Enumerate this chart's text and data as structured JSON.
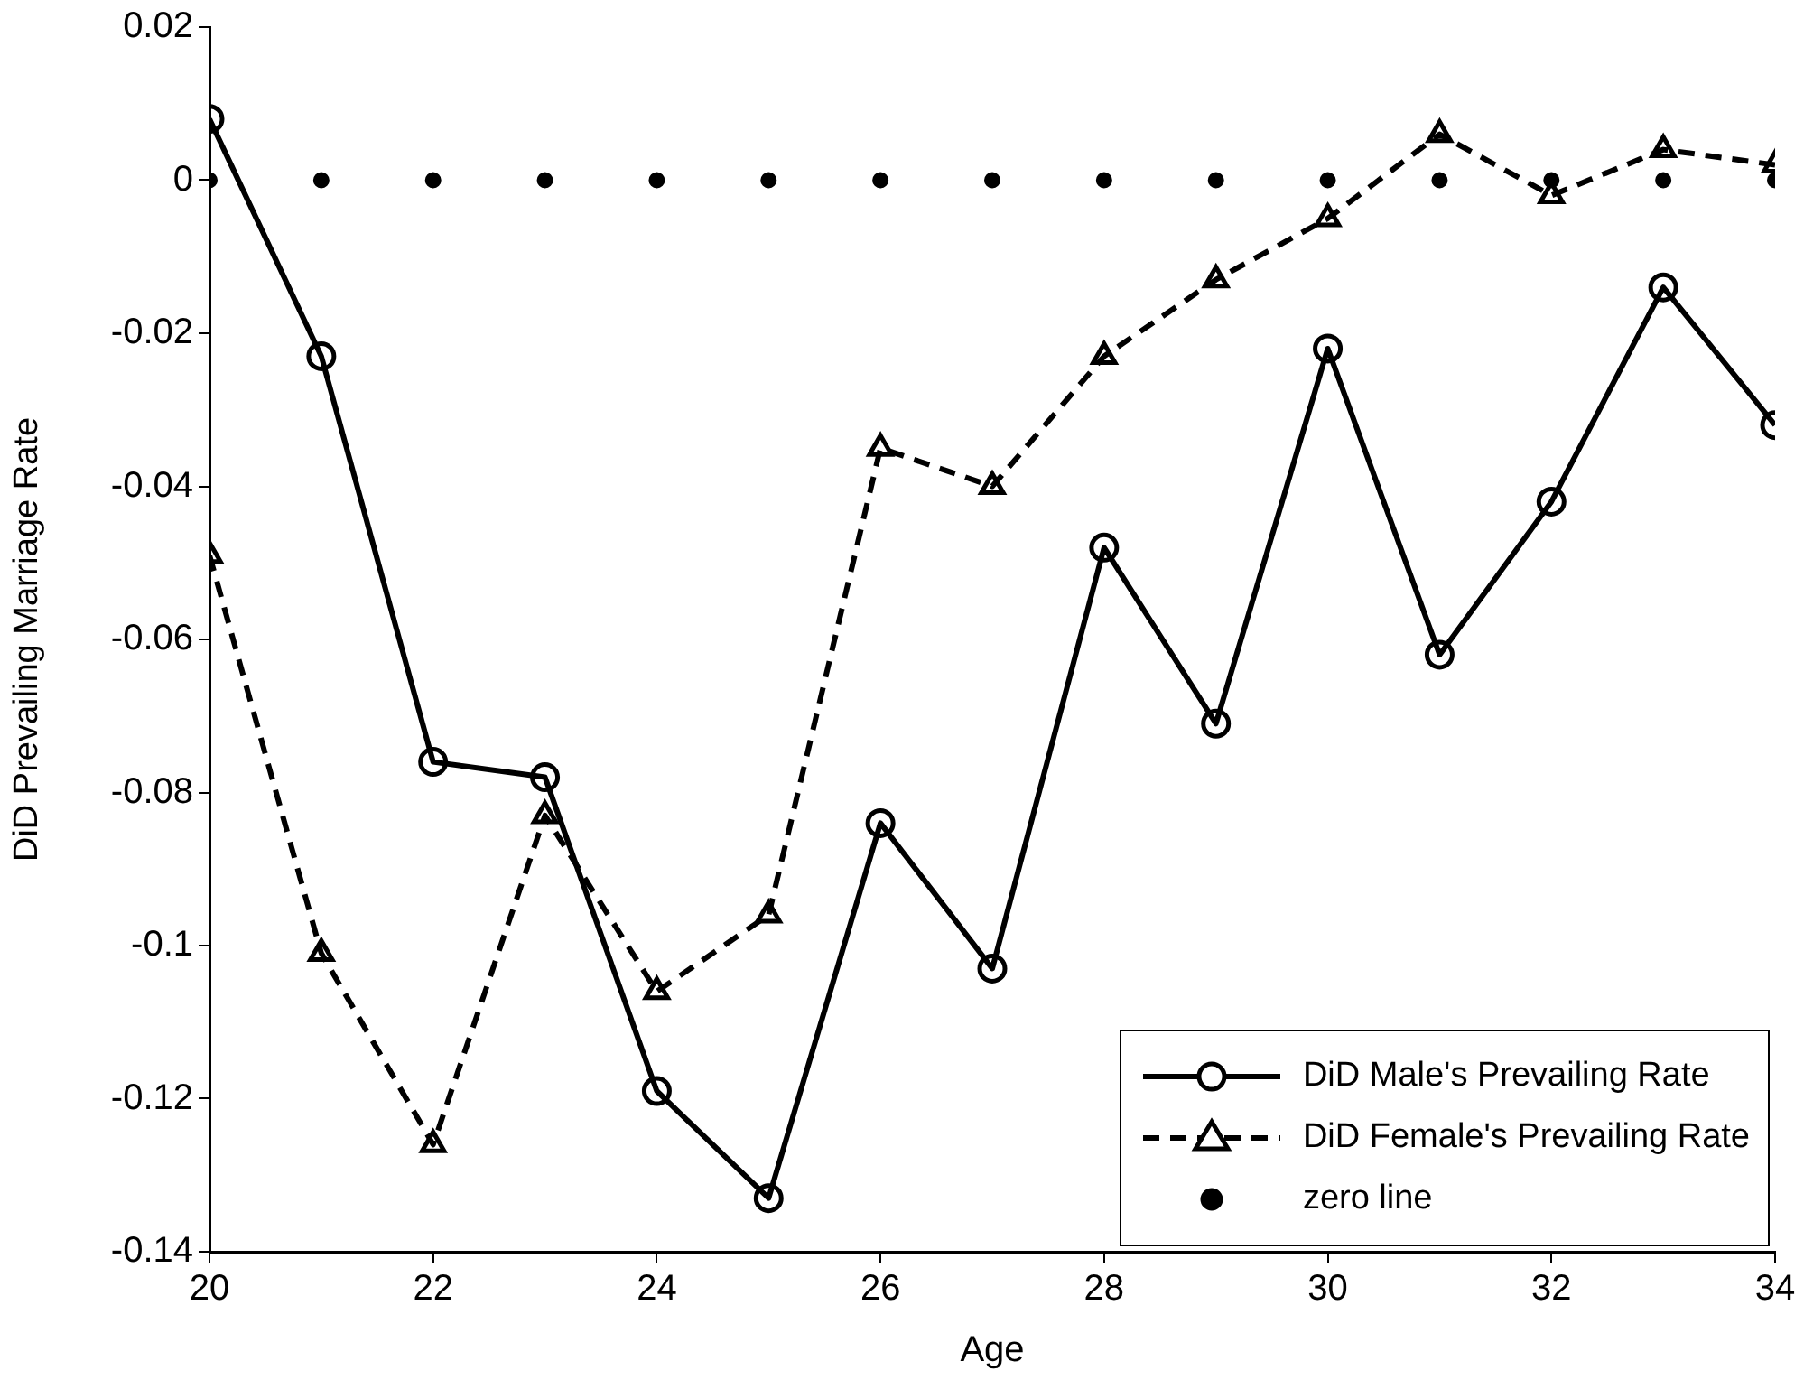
{
  "chart_data": {
    "type": "line",
    "xlabel": "Age",
    "ylabel": "DiD Prevailing Marriage Rate",
    "x": [
      20,
      21,
      22,
      23,
      24,
      25,
      26,
      27,
      28,
      29,
      30,
      31,
      32,
      33,
      34
    ],
    "xlim": [
      20,
      34
    ],
    "xticks": [
      20,
      22,
      24,
      26,
      28,
      30,
      32,
      34
    ],
    "ylim": [
      -0.14,
      0.02
    ],
    "yticks": [
      {
        "value": 0.02,
        "label": "0.02"
      },
      {
        "value": 0,
        "label": "0"
      },
      {
        "value": -0.02,
        "label": "-0.02"
      },
      {
        "value": -0.04,
        "label": "-0.04"
      },
      {
        "value": -0.06,
        "label": "-0.06"
      },
      {
        "value": -0.08,
        "label": "-0.08"
      },
      {
        "value": -0.1,
        "label": "-0.1"
      },
      {
        "value": -0.12,
        "label": "-0.12"
      },
      {
        "value": -0.14,
        "label": "-0.14"
      }
    ],
    "grid": false,
    "legend": "bottom right",
    "series": [
      {
        "name": "DiD Male's Prevailing Rate",
        "color": "#000000",
        "marker": "circle",
        "line_style": "solid",
        "values": [
          0.008,
          -0.023,
          -0.076,
          -0.078,
          -0.119,
          -0.133,
          -0.084,
          -0.103,
          -0.048,
          -0.071,
          -0.022,
          -0.062,
          -0.042,
          -0.014,
          -0.032
        ]
      },
      {
        "name": "DiD Female's Prevailing Rate",
        "color": "#000000",
        "marker": "triangle",
        "line_style": "dashed",
        "values": [
          -0.049,
          -0.101,
          -0.126,
          -0.083,
          -0.106,
          -0.096,
          -0.035,
          -0.04,
          -0.023,
          -0.013,
          -0.005,
          0.006,
          -0.002,
          0.004,
          0.002
        ]
      },
      {
        "name": "zero line",
        "type": "scatter",
        "color": "#000000",
        "marker": "circle",
        "values": [
          0,
          0,
          0,
          0,
          0,
          0,
          0,
          0,
          0,
          0,
          0,
          0,
          0,
          0,
          0
        ]
      }
    ]
  }
}
